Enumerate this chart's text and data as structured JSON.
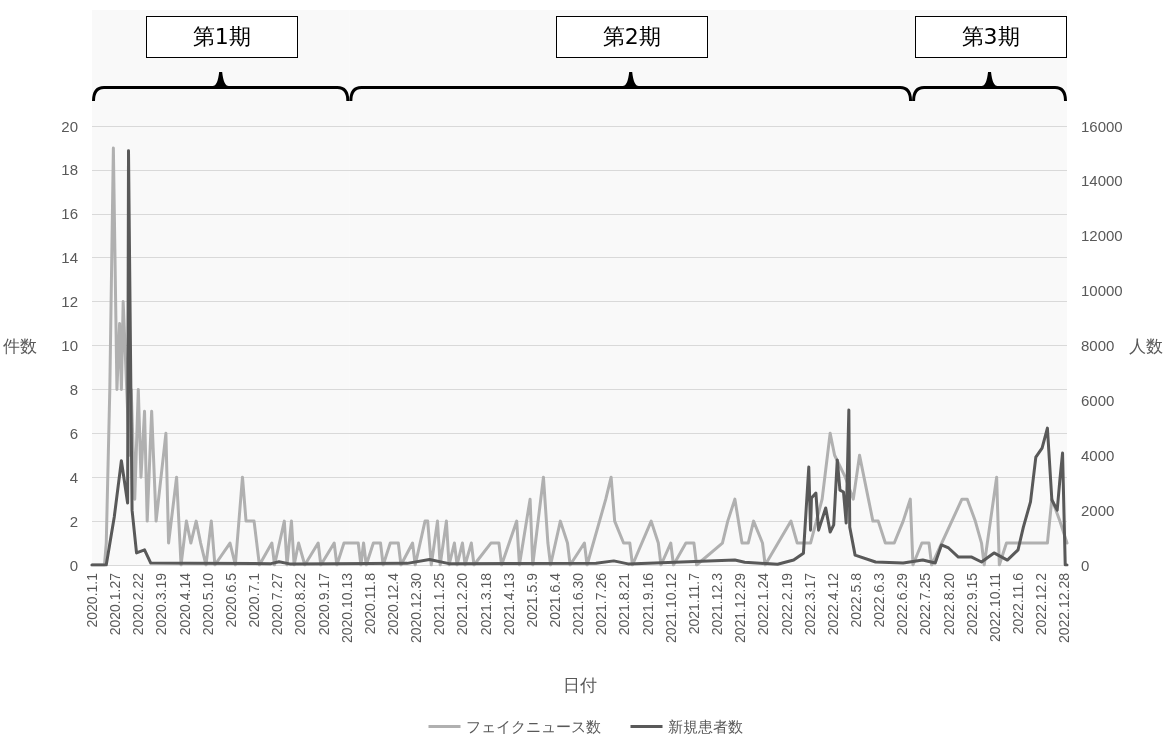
{
  "chart_data": {
    "type": "line",
    "xlabel": "日付",
    "ylabel": "件数",
    "y2label": "人数",
    "legend": "bottom",
    "grid": "y",
    "marker": "none",
    "xlim": [
      "2020-01-01",
      "2022-12-31"
    ],
    "xticks": [
      {
        "value": "2020-01-01",
        "label": "2020.1.1"
      },
      {
        "value": "2020-01-27",
        "label": "2020.1.27"
      },
      {
        "value": "2020-02-22",
        "label": "2020.2.22"
      },
      {
        "value": "2020-03-19",
        "label": "2020.3.19"
      },
      {
        "value": "2020-04-14",
        "label": "2020.4.14"
      },
      {
        "value": "2020-05-10",
        "label": "2020.5.10"
      },
      {
        "value": "2020-06-05",
        "label": "2020.6.5"
      },
      {
        "value": "2020-07-01",
        "label": "2020.7.1"
      },
      {
        "value": "2020-07-27",
        "label": "2020.7.27"
      },
      {
        "value": "2020-08-22",
        "label": "2020.8.22"
      },
      {
        "value": "2020-09-17",
        "label": "2020.9.17"
      },
      {
        "value": "2020-10-13",
        "label": "2020.10.13"
      },
      {
        "value": "2020-11-08",
        "label": "2020.11.8"
      },
      {
        "value": "2020-12-04",
        "label": "2020.12.4"
      },
      {
        "value": "2020-12-30",
        "label": "2020.12.30"
      },
      {
        "value": "2021-01-25",
        "label": "2021.1.25"
      },
      {
        "value": "2021-02-20",
        "label": "2021.2.20"
      },
      {
        "value": "2021-03-18",
        "label": "2021.3.18"
      },
      {
        "value": "2021-04-13",
        "label": "2021.4.13"
      },
      {
        "value": "2021-05-09",
        "label": "2021.5.9"
      },
      {
        "value": "2021-06-04",
        "label": "2021.6.4"
      },
      {
        "value": "2021-06-30",
        "label": "2021.6.30"
      },
      {
        "value": "2021-07-26",
        "label": "2021.7.26"
      },
      {
        "value": "2021-08-21",
        "label": "2021.8.21"
      },
      {
        "value": "2021-09-16",
        "label": "2021.9.16"
      },
      {
        "value": "2021-10-12",
        "label": "2021.10.12"
      },
      {
        "value": "2021-11-07",
        "label": "2021.11.7"
      },
      {
        "value": "2021-12-03",
        "label": "2021.12.3"
      },
      {
        "value": "2021-12-29",
        "label": "2021.12.29"
      },
      {
        "value": "2022-01-24",
        "label": "2022.1.24"
      },
      {
        "value": "2022-02-19",
        "label": "2022.2.19"
      },
      {
        "value": "2022-03-17",
        "label": "2022.3.17"
      },
      {
        "value": "2022-04-12",
        "label": "2022.4.12"
      },
      {
        "value": "2022-05-08",
        "label": "2022.5.8"
      },
      {
        "value": "2022-06-03",
        "label": "2022.6.3"
      },
      {
        "value": "2022-06-29",
        "label": "2022.6.29"
      },
      {
        "value": "2022-07-25",
        "label": "2022.7.25"
      },
      {
        "value": "2022-08-20",
        "label": "2022.8.20"
      },
      {
        "value": "2022-09-15",
        "label": "2022.9.15"
      },
      {
        "value": "2022-10-11",
        "label": "2022.10.11"
      },
      {
        "value": "2022-11-06",
        "label": "2022.11.6"
      },
      {
        "value": "2022-12-02",
        "label": "2022.12.2"
      },
      {
        "value": "2022-12-28",
        "label": "2022.12.28"
      }
    ],
    "ylim": [
      0,
      20
    ],
    "yticks": [
      0,
      2,
      4,
      6,
      8,
      10,
      12,
      14,
      16,
      18,
      20
    ],
    "y2lim": [
      0,
      16000
    ],
    "y2ticks": [
      0,
      2000,
      4000,
      6000,
      8000,
      10000,
      12000,
      14000,
      16000
    ],
    "bands": [
      {
        "axis": "x",
        "from": "2020-01-01",
        "to": "2020-10-16",
        "label": "第1期",
        "color": "#f4f4f4"
      },
      {
        "axis": "x",
        "from": "2020-10-16",
        "to": "2022-07-10",
        "label": "第2期",
        "color": "#f4f4f4"
      },
      {
        "axis": "x",
        "from": "2022-07-10",
        "to": "2022-12-31",
        "label": "第3期",
        "color": "#f4f4f4"
      }
    ],
    "series": [
      {
        "name": "フェイクニュース数",
        "color": "#b0b0b0",
        "x": [
          "2020-01-01",
          "2020-01-15",
          "2020-01-17",
          "2020-01-21",
          "2020-01-25",
          "2020-01-29",
          "2020-02-01",
          "2020-02-03",
          "2020-02-05",
          "2020-02-09",
          "2020-02-12",
          "2020-02-14",
          "2020-02-18",
          "2020-02-22",
          "2020-02-25",
          "2020-02-29",
          "2020-03-03",
          "2020-03-08",
          "2020-03-13",
          "2020-03-24",
          "2020-03-27",
          "2020-04-05",
          "2020-04-10",
          "2020-04-16",
          "2020-04-21",
          "2020-04-27",
          "2020-05-02",
          "2020-05-08",
          "2020-05-14",
          "2020-05-18",
          "2020-06-04",
          "2020-06-10",
          "2020-06-18",
          "2020-06-22",
          "2020-07-01",
          "2020-07-07",
          "2020-07-21",
          "2020-07-24",
          "2020-08-04",
          "2020-08-07",
          "2020-08-12",
          "2020-08-15",
          "2020-08-20",
          "2020-08-27",
          "2020-09-11",
          "2020-09-14",
          "2020-09-29",
          "2020-10-02",
          "2020-10-10",
          "2020-10-26",
          "2020-10-29",
          "2020-11-01",
          "2020-11-04",
          "2020-11-12",
          "2020-11-20",
          "2020-11-23",
          "2020-12-01",
          "2020-12-10",
          "2020-12-13",
          "2020-12-26",
          "2020-12-29",
          "2021-01-09",
          "2021-01-12",
          "2021-01-16",
          "2021-01-23",
          "2021-01-26",
          "2021-02-02",
          "2021-02-05",
          "2021-02-11",
          "2021-02-14",
          "2021-02-20",
          "2021-02-23",
          "2021-03-02",
          "2021-03-05",
          "2021-03-24",
          "2021-04-02",
          "2021-04-05",
          "2021-04-22",
          "2021-04-25",
          "2021-05-07",
          "2021-05-10",
          "2021-05-22",
          "2021-05-27",
          "2021-05-30",
          "2021-06-10",
          "2021-06-18",
          "2021-06-21",
          "2021-07-07",
          "2021-07-10",
          "2021-07-24",
          "2021-07-31",
          "2021-08-06",
          "2021-08-10",
          "2021-08-20",
          "2021-08-27",
          "2021-08-30",
          "2021-09-20",
          "2021-09-28",
          "2021-10-01",
          "2021-10-12",
          "2021-10-15",
          "2021-10-29",
          "2021-11-07",
          "2021-11-10",
          "2021-12-09",
          "2021-12-15",
          "2021-12-23",
          "2021-12-31",
          "2022-01-07",
          "2022-01-13",
          "2022-01-23",
          "2022-01-26",
          "2022-02-24",
          "2022-03-03",
          "2022-03-18",
          "2022-03-31",
          "2022-04-09",
          "2022-04-14",
          "2022-04-26",
          "2022-05-05",
          "2022-05-12",
          "2022-05-22",
          "2022-05-27",
          "2022-06-02",
          "2022-06-10",
          "2022-06-20",
          "2022-06-30",
          "2022-07-08",
          "2022-07-11",
          "2022-07-21",
          "2022-07-29",
          "2022-08-01",
          "2022-09-04",
          "2022-09-10",
          "2022-09-19",
          "2022-09-26",
          "2022-09-29",
          "2022-10-13",
          "2022-10-16",
          "2022-10-24",
          "2022-11-03",
          "2022-11-17",
          "2022-12-09",
          "2022-12-14",
          "2022-12-23",
          "2022-12-31"
        ],
        "values": [
          0,
          0,
          1,
          8,
          19,
          8,
          11,
          8,
          12,
          8,
          5,
          8,
          3,
          8,
          4,
          7,
          2,
          7,
          2,
          6,
          1,
          4,
          0,
          2,
          1,
          2,
          1,
          0,
          2,
          0,
          1,
          0,
          4,
          2,
          2,
          0,
          1,
          0,
          2,
          0,
          2,
          0,
          1,
          0,
          1,
          0,
          1,
          0,
          1,
          1,
          0,
          1,
          0,
          1,
          1,
          0,
          1,
          1,
          0,
          1,
          0,
          2,
          2,
          0,
          2,
          0,
          2,
          0,
          1,
          0,
          1,
          0,
          1,
          0,
          1,
          1,
          0,
          2,
          0,
          3,
          0,
          4,
          1,
          0,
          2,
          1,
          0,
          1,
          0,
          2,
          3,
          4,
          2,
          1,
          1,
          0,
          2,
          1,
          0,
          1,
          0,
          1,
          1,
          0,
          1,
          2,
          3,
          1,
          1,
          2,
          1,
          0,
          2,
          1,
          1,
          3,
          6,
          5,
          4,
          3,
          5,
          3,
          2,
          2,
          1,
          1,
          2,
          3,
          0,
          1,
          1,
          0,
          3,
          3,
          2,
          1,
          0,
          4,
          0,
          1,
          1,
          1,
          1,
          3,
          2,
          1
        ]
      },
      {
        "name": "新規患者数",
        "color": "#595959",
        "axis": "y2",
        "x": [
          "2020-01-01",
          "2020-01-17",
          "2020-01-26",
          "2020-02-03",
          "2020-02-10",
          "2020-02-11",
          "2020-02-15",
          "2020-02-20",
          "2020-02-29",
          "2020-03-07",
          "2020-04-20",
          "2020-07-20",
          "2020-07-29",
          "2020-08-10",
          "2020-12-20",
          "2021-01-14",
          "2021-02-05",
          "2021-07-20",
          "2021-08-09",
          "2021-08-25",
          "2021-12-23",
          "2022-01-03",
          "2022-02-09",
          "2022-02-27",
          "2022-03-10",
          "2022-03-16",
          "2022-03-18",
          "2022-03-19",
          "2022-03-24",
          "2022-03-27",
          "2022-04-04",
          "2022-04-09",
          "2022-04-13",
          "2022-04-17",
          "2022-04-20",
          "2022-04-24",
          "2022-04-27",
          "2022-04-30",
          "2022-05-01",
          "2022-05-07",
          "2022-05-30",
          "2022-06-30",
          "2022-07-22",
          "2022-08-05",
          "2022-08-12",
          "2022-08-20",
          "2022-08-31",
          "2022-09-15",
          "2022-09-26",
          "2022-10-10",
          "2022-10-25",
          "2022-11-06",
          "2022-11-12",
          "2022-11-20",
          "2022-11-26",
          "2022-12-03",
          "2022-12-09",
          "2022-12-14",
          "2022-12-20",
          "2022-12-23",
          "2022-12-26",
          "2022-12-29",
          "2022-12-31"
        ],
        "values": [
          0,
          0,
          1750,
          3800,
          2260,
          15100,
          2000,
          440,
          550,
          70,
          60,
          50,
          120,
          40,
          60,
          200,
          50,
          60,
          150,
          40,
          180,
          100,
          30,
          180,
          430,
          3570,
          1270,
          2440,
          2620,
          1270,
          2080,
          1200,
          1460,
          3830,
          2730,
          2660,
          1530,
          5650,
          1380,
          360,
          110,
          70,
          180,
          70,
          730,
          620,
          290,
          290,
          110,
          440,
          180,
          550,
          1380,
          2300,
          3930,
          4260,
          4990,
          2370,
          2000,
          3100,
          4080,
          0,
          0
        ]
      }
    ]
  }
}
